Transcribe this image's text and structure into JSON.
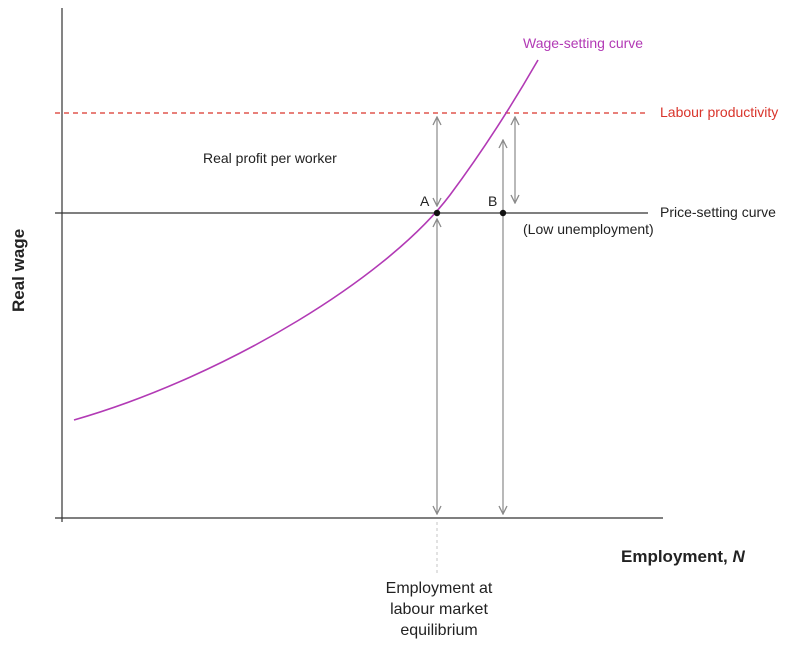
{
  "axes": {
    "y_title": "Real wage",
    "x_title_prefix": "Employment, ",
    "x_title_var": "N"
  },
  "curves": {
    "wage_setting": {
      "label": "Wage-setting curve",
      "color": "#b23ab5"
    },
    "labour_productivity": {
      "label": "Labour productivity",
      "color": "#d9342b"
    },
    "price_setting": {
      "label": "Price-setting curve",
      "sublabel": "(Low unemployment)",
      "color": "#333333"
    }
  },
  "regions": {
    "profit": "Real profit per worker"
  },
  "points": {
    "a": "A",
    "b": "B"
  },
  "equilibrium_label": [
    "Employment at",
    "labour market",
    "equilibrium"
  ],
  "colors": {
    "arrow": "#8a8a8a",
    "axis": "#333333"
  }
}
